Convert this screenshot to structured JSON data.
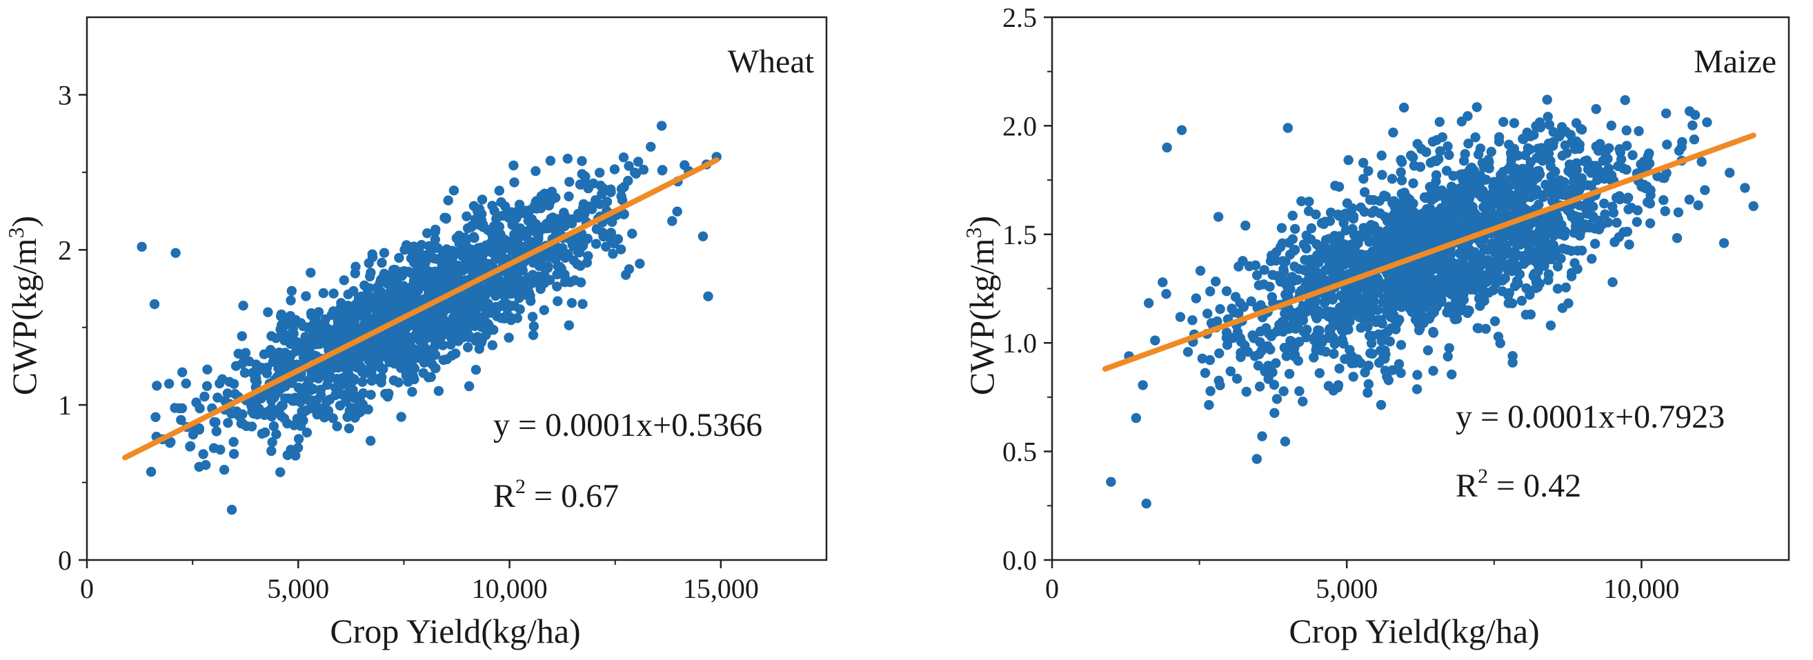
{
  "colors": {
    "points": "#1f6fb2",
    "fit_line": "#f08a24",
    "axis": "#222222"
  },
  "chart_data": [
    {
      "type": "scatter",
      "title": "Wheat",
      "xlabel": "Crop Yield(kg/ha)",
      "ylabel_main": "CWP(kg/m",
      "ylabel_sup": "3",
      "ylabel_close": ")",
      "xlim": [
        0,
        17500
      ],
      "ylim": [
        0,
        3.5
      ],
      "xticks": [
        0,
        5000,
        10000,
        15000
      ],
      "xtick_labels": [
        "0",
        "5,000",
        "10,000",
        "15,000"
      ],
      "yticks": [
        0,
        1,
        2,
        3
      ],
      "ytick_labels": [
        "0",
        "1",
        "2",
        "3"
      ],
      "fit": {
        "slope": 0.0001371,
        "intercept": 0.5366,
        "x_range": [
          900,
          14900
        ]
      },
      "equation": "y = 0.0001x+0.5366",
      "r2_label": "R",
      "r2_sup": "2",
      "r2_value": " = 0.67",
      "scatter": {
        "n": 1800,
        "seed": 11,
        "x_mean": 7800,
        "x_sd": 2300,
        "x_min": 900,
        "x_max": 15000,
        "resid_sd": 0.21,
        "y_min": 0.2,
        "y_max": 2.8,
        "outliers": [
          [
            1300,
            2.02
          ],
          [
            2100,
            1.98
          ],
          [
            14700,
            1.7
          ],
          [
            1600,
            1.65
          ],
          [
            14900,
            2.6
          ],
          [
            13600,
            2.8
          ]
        ]
      }
    },
    {
      "type": "scatter",
      "title": "Maize",
      "xlabel": "Crop Yield(kg/ha)",
      "ylabel_main": "CWP(kg/m",
      "ylabel_sup": "3",
      "ylabel_close": ")",
      "xlim": [
        0,
        12500
      ],
      "ylim": [
        0,
        2.5
      ],
      "xticks": [
        0,
        5000,
        10000
      ],
      "xtick_labels": [
        "0",
        "5,000",
        "10,000"
      ],
      "yticks": [
        0,
        0.5,
        1.0,
        1.5,
        2.0,
        2.5
      ],
      "ytick_labels": [
        "0.0",
        "0.5",
        "1.0",
        "1.5",
        "2.0",
        "2.5"
      ],
      "fit": {
        "slope": 9.78e-05,
        "intercept": 0.7923,
        "x_range": [
          900,
          11900
        ]
      },
      "equation": "y = 0.0001x+0.7923",
      "r2_label": "R",
      "r2_sup": "2",
      "r2_value": " = 0.42",
      "scatter": {
        "n": 2000,
        "seed": 29,
        "x_mean": 6500,
        "x_sd": 1700,
        "x_min": 900,
        "x_max": 12000,
        "resid_sd": 0.2,
        "y_min": 0.26,
        "y_max": 2.12,
        "outliers": [
          [
            1600,
            0.26
          ],
          [
            2200,
            1.98
          ],
          [
            1950,
            1.9
          ],
          [
            8400,
            2.12
          ],
          [
            6950,
            2.02
          ],
          [
            4000,
            1.99
          ],
          [
            11400,
            1.46
          ],
          [
            11900,
            1.63
          ],
          [
            1000,
            0.36
          ]
        ]
      }
    }
  ]
}
